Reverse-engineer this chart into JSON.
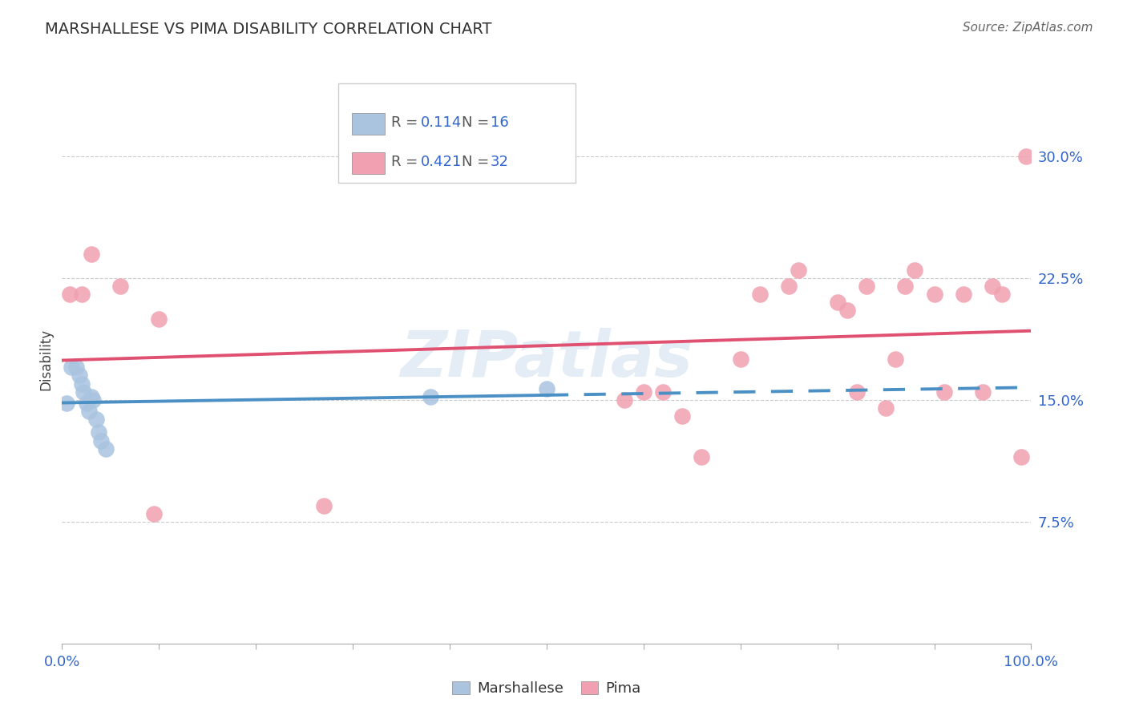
{
  "title": "MARSHALLESE VS PIMA DISABILITY CORRELATION CHART",
  "source": "Source: ZipAtlas.com",
  "ylabel": "Disability",
  "xlim": [
    0,
    1.0
  ],
  "ylim": [
    0,
    0.35
  ],
  "yticks": [
    0.075,
    0.15,
    0.225,
    0.3
  ],
  "ytick_labels": [
    "7.5%",
    "15.0%",
    "22.5%",
    "30.0%"
  ],
  "xticks": [
    0.0,
    0.1,
    0.2,
    0.3,
    0.4,
    0.5,
    0.6,
    0.7,
    0.8,
    0.9,
    1.0
  ],
  "xtick_labels": [
    "0.0%",
    "",
    "",
    "",
    "",
    "",
    "",
    "",
    "",
    "",
    "100.0%"
  ],
  "grid_color": "#cccccc",
  "bg_color": "#ffffff",
  "marsh_color": "#aac4e0",
  "pima_color": "#f0a0b0",
  "marsh_line_color": "#4a90c4",
  "pima_line_color": "#e05070",
  "marsh_R": "0.114",
  "marsh_N": "16",
  "pima_R": "0.421",
  "pima_N": "32",
  "label_color": "#3366cc",
  "watermark": "ZIPatlas",
  "marsh_x": [
    0.005,
    0.01,
    0.015,
    0.018,
    0.02,
    0.022,
    0.025,
    0.028,
    0.03,
    0.032,
    0.035,
    0.038,
    0.04,
    0.045,
    0.38,
    0.5
  ],
  "marsh_y": [
    0.148,
    0.17,
    0.17,
    0.165,
    0.16,
    0.155,
    0.148,
    0.143,
    0.152,
    0.15,
    0.138,
    0.13,
    0.125,
    0.12,
    0.152,
    0.157
  ],
  "pima_x": [
    0.008,
    0.02,
    0.03,
    0.06,
    0.095,
    0.1,
    0.27,
    0.58,
    0.6,
    0.62,
    0.64,
    0.66,
    0.7,
    0.72,
    0.75,
    0.76,
    0.8,
    0.81,
    0.82,
    0.83,
    0.85,
    0.86,
    0.87,
    0.88,
    0.9,
    0.91,
    0.93,
    0.95,
    0.96,
    0.97,
    0.99,
    0.995
  ],
  "pima_y": [
    0.215,
    0.215,
    0.24,
    0.22,
    0.08,
    0.2,
    0.085,
    0.15,
    0.155,
    0.155,
    0.14,
    0.115,
    0.175,
    0.215,
    0.22,
    0.23,
    0.21,
    0.205,
    0.155,
    0.22,
    0.145,
    0.175,
    0.22,
    0.23,
    0.215,
    0.155,
    0.215,
    0.155,
    0.22,
    0.215,
    0.115,
    0.3
  ]
}
